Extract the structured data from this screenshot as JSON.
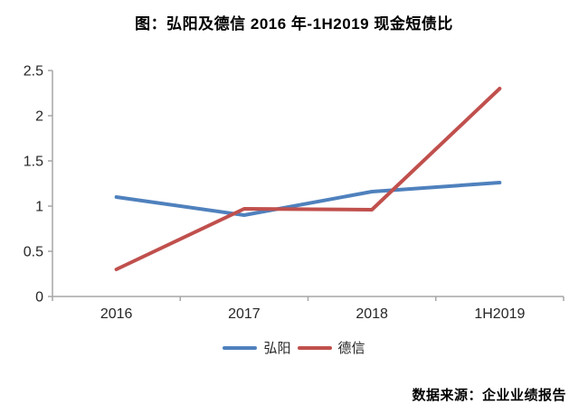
{
  "footer": {
    "source": "数据来源：企业业绩报告"
  },
  "chart_data": {
    "type": "line",
    "title": "图：弘阳及德信 2016 年-1H2019 现金短债比",
    "categories": [
      "2016",
      "2017",
      "2018",
      "1H2019"
    ],
    "series": [
      {
        "name": "弘阳",
        "color": "#4F81BD",
        "values": [
          1.1,
          0.9,
          1.16,
          1.26
        ]
      },
      {
        "name": "德信",
        "color": "#C0504D",
        "values": [
          0.3,
          0.97,
          0.96,
          2.3
        ]
      }
    ],
    "xlabel": "",
    "ylabel": "",
    "ylim": [
      0,
      2.5
    ],
    "yticks": [
      0,
      0.5,
      1,
      1.5,
      2,
      2.5
    ],
    "ytick_labels": [
      "0",
      "0.5",
      "1",
      "1.5",
      "2",
      "2.5"
    ],
    "grid": false,
    "legend_position": "bottom",
    "colors": {
      "axis": "#A6A6A6",
      "tick_label": "#262626",
      "title": "#000000"
    }
  }
}
